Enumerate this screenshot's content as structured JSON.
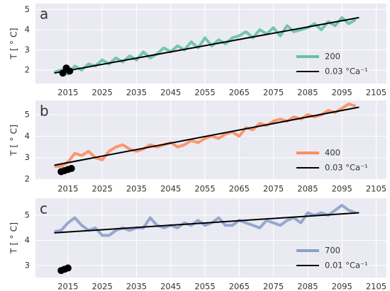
{
  "chart_data": [
    {
      "type": "line",
      "label": "a",
      "ylabel": "T [ ° C]",
      "xlim": [
        2005.5,
        2108
      ],
      "ylim": [
        1.33,
        5.3
      ],
      "xticks": [
        2015,
        2025,
        2035,
        2045,
        2055,
        2065,
        2075,
        2085,
        2095,
        2105
      ],
      "yticks": [
        2,
        3,
        4,
        5
      ],
      "grid": true,
      "legend": "lower right",
      "series": [
        {
          "name": "200",
          "color": "#66c2a5",
          "style": "line",
          "x": [
            2011,
            2013,
            2015,
            2017,
            2019,
            2021,
            2023,
            2025,
            2027,
            2029,
            2031,
            2033,
            2035,
            2037,
            2039,
            2041,
            2043,
            2045,
            2047,
            2049,
            2051,
            2053,
            2055,
            2057,
            2059,
            2061,
            2063,
            2065,
            2067,
            2069,
            2071,
            2073,
            2075,
            2077,
            2079,
            2081,
            2083,
            2085,
            2087,
            2089,
            2091,
            2093,
            2095,
            2097,
            2099
          ],
          "values": [
            1.9,
            2.0,
            1.8,
            2.2,
            2.0,
            2.3,
            2.2,
            2.5,
            2.3,
            2.6,
            2.4,
            2.7,
            2.5,
            2.9,
            2.6,
            2.8,
            3.1,
            2.9,
            3.2,
            3.0,
            3.4,
            3.1,
            3.6,
            3.2,
            3.5,
            3.3,
            3.6,
            3.7,
            3.9,
            3.6,
            4.0,
            3.8,
            4.1,
            3.7,
            4.2,
            3.9,
            4.0,
            4.1,
            4.3,
            4.0,
            4.4,
            4.2,
            4.6,
            4.3,
            4.5
          ]
        },
        {
          "name": "0.03 °Ca⁻¹",
          "color": "#000000",
          "style": "line",
          "x": [
            2011,
            2100
          ],
          "values": [
            1.85,
            4.6
          ]
        },
        {
          "color": "#000000",
          "style": "points",
          "x": [
            2013.5,
            2014.5,
            2015.5
          ],
          "values": [
            1.85,
            2.1,
            1.95
          ]
        }
      ]
    },
    {
      "type": "line",
      "label": "b",
      "ylabel": "T [ ° C]",
      "xlim": [
        2005.5,
        2108
      ],
      "ylim": [
        1.97,
        5.66
      ],
      "xticks": [
        2015,
        2025,
        2035,
        2045,
        2055,
        2065,
        2075,
        2085,
        2095,
        2105
      ],
      "yticks": [
        2,
        3,
        4,
        5
      ],
      "grid": true,
      "legend": "lower right",
      "series": [
        {
          "name": "400",
          "color": "#fc8d62",
          "style": "line",
          "x": [
            2011,
            2013,
            2015,
            2017,
            2019,
            2021,
            2023,
            2025,
            2027,
            2029,
            2031,
            2033,
            2035,
            2037,
            2039,
            2041,
            2043,
            2045,
            2047,
            2049,
            2051,
            2053,
            2055,
            2057,
            2059,
            2061,
            2063,
            2065,
            2067,
            2069,
            2071,
            2073,
            2075,
            2077,
            2079,
            2081,
            2083,
            2085,
            2087,
            2089,
            2091,
            2093,
            2095,
            2097,
            2099
          ],
          "values": [
            2.6,
            2.6,
            2.8,
            3.2,
            3.1,
            3.3,
            3.0,
            2.9,
            3.3,
            3.5,
            3.6,
            3.4,
            3.3,
            3.4,
            3.6,
            3.5,
            3.6,
            3.7,
            3.5,
            3.6,
            3.8,
            3.7,
            3.9,
            4.0,
            3.9,
            4.1,
            4.2,
            4.0,
            4.4,
            4.3,
            4.6,
            4.5,
            4.7,
            4.8,
            4.7,
            4.9,
            4.8,
            5.0,
            4.9,
            5.0,
            5.2,
            5.1,
            5.3,
            5.5,
            5.4
          ]
        },
        {
          "name": "0.03 °Ca⁻¹",
          "color": "#000000",
          "style": "line",
          "x": [
            2011,
            2100
          ],
          "values": [
            2.65,
            5.35
          ]
        },
        {
          "color": "#000000",
          "style": "points",
          "x": [
            2013,
            2014,
            2015,
            2016
          ],
          "values": [
            2.35,
            2.4,
            2.45,
            2.5
          ]
        }
      ]
    },
    {
      "type": "line",
      "label": "c",
      "ylabel": "T [ ° C]",
      "xlim": [
        2005.5,
        2108
      ],
      "ylim": [
        2.52,
        5.68
      ],
      "xticks": [
        2015,
        2025,
        2035,
        2045,
        2055,
        2065,
        2075,
        2085,
        2095,
        2105
      ],
      "yticks": [
        3,
        4,
        5
      ],
      "grid": true,
      "legend": "lower right",
      "series": [
        {
          "name": "700",
          "color": "#8da0cb",
          "style": "line",
          "x": [
            2011,
            2013,
            2015,
            2017,
            2019,
            2021,
            2023,
            2025,
            2027,
            2029,
            2031,
            2033,
            2035,
            2037,
            2039,
            2041,
            2043,
            2045,
            2047,
            2049,
            2051,
            2053,
            2055,
            2057,
            2059,
            2061,
            2063,
            2065,
            2067,
            2069,
            2071,
            2073,
            2075,
            2077,
            2079,
            2081,
            2083,
            2085,
            2087,
            2089,
            2091,
            2093,
            2095,
            2097,
            2099
          ],
          "values": [
            4.35,
            4.4,
            4.7,
            4.9,
            4.6,
            4.4,
            4.5,
            4.2,
            4.2,
            4.4,
            4.5,
            4.4,
            4.5,
            4.5,
            4.9,
            4.6,
            4.5,
            4.6,
            4.5,
            4.7,
            4.6,
            4.8,
            4.6,
            4.7,
            4.9,
            4.6,
            4.6,
            4.8,
            4.7,
            4.6,
            4.5,
            4.8,
            4.7,
            4.6,
            4.8,
            4.9,
            4.7,
            5.1,
            5.0,
            5.1,
            5.0,
            5.2,
            5.4,
            5.2,
            5.1
          ]
        },
        {
          "name": "0.01 °Ca⁻¹",
          "color": "#000000",
          "style": "line",
          "x": [
            2011,
            2100
          ],
          "values": [
            4.3,
            5.1
          ]
        },
        {
          "color": "#000000",
          "style": "points",
          "x": [
            2013,
            2014,
            2015
          ],
          "values": [
            2.8,
            2.85,
            2.9
          ]
        }
      ]
    }
  ]
}
